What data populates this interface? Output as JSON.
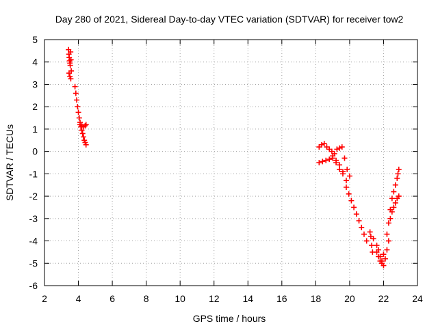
{
  "chart_data": {
    "type": "scatter",
    "title": "Day 280 of 2021, Sidereal Day-to-day VTEC variation (SDTVAR) for receiver tow2",
    "xlabel": "GPS time / hours",
    "ylabel": "SDTVAR / TECUs",
    "xlim": [
      2,
      24
    ],
    "ylim": [
      -6,
      5
    ],
    "xticks": [
      "2",
      "4",
      "6",
      "8",
      "10",
      "12",
      "14",
      "16",
      "18",
      "20",
      "22",
      "24"
    ],
    "yticks": [
      "5",
      "4",
      "3",
      "2",
      "1",
      "0",
      "-1",
      "-2",
      "-3",
      "-4",
      "-5",
      "-6"
    ],
    "grid": true,
    "marker": "+",
    "color": "#ff0000",
    "series": [
      {
        "name": "SDTVAR",
        "x": [
          3.42,
          3.44,
          3.46,
          3.48,
          3.5,
          3.52,
          3.54,
          3.56,
          3.45,
          3.5,
          3.55,
          3.58,
          3.8,
          3.85,
          3.9,
          3.95,
          4.0,
          4.05,
          4.1,
          4.15,
          4.2,
          4.25,
          4.3,
          4.35,
          4.4,
          4.45,
          4.1,
          4.2,
          4.3,
          4.4,
          4.45,
          18.2,
          18.35,
          18.5,
          18.65,
          18.8,
          18.95,
          19.1,
          19.25,
          19.4,
          19.55,
          19.7,
          19.85,
          20.0,
          18.2,
          18.4,
          18.6,
          18.8,
          19.0,
          19.2,
          19.4,
          19.6,
          19.8,
          19.0,
          19.2,
          19.4,
          19.6,
          19.8,
          19.95,
          20.1,
          20.25,
          20.4,
          20.55,
          20.7,
          20.85,
          21.0,
          21.2,
          21.25,
          21.3,
          21.35,
          21.4,
          21.6,
          21.7,
          21.8,
          21.9,
          22.0,
          22.1,
          22.2,
          22.3,
          21.6,
          21.7,
          21.8,
          21.9,
          22.0,
          22.2,
          22.3,
          22.4,
          22.5,
          22.6,
          22.7,
          22.8,
          22.85,
          22.9,
          22.4,
          22.5,
          22.6,
          22.7,
          22.8,
          22.9
        ],
        "y": [
          4.55,
          4.35,
          4.2,
          4.05,
          3.95,
          3.85,
          4.45,
          4.1,
          3.5,
          3.35,
          3.25,
          3.6,
          2.9,
          2.6,
          2.3,
          2.0,
          1.75,
          1.5,
          1.3,
          1.1,
          0.95,
          0.8,
          0.65,
          0.5,
          0.4,
          0.3,
          1.2,
          1.15,
          1.1,
          1.15,
          1.2,
          0.2,
          0.3,
          0.35,
          0.2,
          0.1,
          0.0,
          -0.1,
          0.1,
          0.15,
          0.2,
          -0.3,
          -0.8,
          -1.1,
          -0.5,
          -0.45,
          -0.4,
          -0.35,
          -0.3,
          -0.4,
          -0.6,
          -0.9,
          -1.3,
          -0.2,
          -0.5,
          -0.8,
          -1.0,
          -1.6,
          -1.9,
          -2.2,
          -2.5,
          -2.8,
          -3.1,
          -3.4,
          -3.7,
          -4.0,
          -3.6,
          -3.8,
          -4.2,
          -4.5,
          -3.9,
          -4.2,
          -4.4,
          -4.7,
          -4.9,
          -5.1,
          -4.8,
          -4.4,
          -4.0,
          -4.5,
          -4.7,
          -4.9,
          -5.0,
          -4.6,
          -3.7,
          -3.2,
          -2.6,
          -2.1,
          -1.8,
          -1.5,
          -1.2,
          -1.0,
          -0.8,
          -3.0,
          -2.7,
          -2.5,
          -2.3,
          -2.1,
          -2.0
        ]
      }
    ]
  }
}
